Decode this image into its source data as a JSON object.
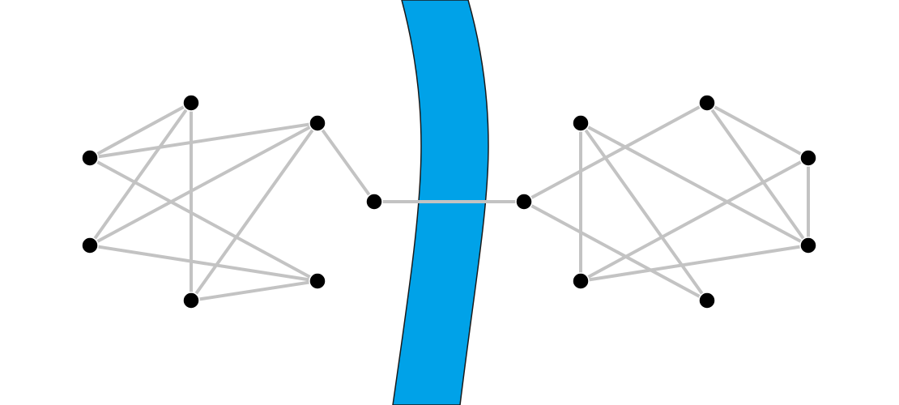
{
  "diagram": {
    "type": "graph",
    "description_visible_text": "",
    "colors": {
      "river_fill": "#00a2e8",
      "river_stroke": "#1a1a1a",
      "edge": "#c3c3c3",
      "node": "#000000",
      "node_outline": "#ffffff",
      "background": "#ffffff"
    },
    "nodes": [
      {
        "id": "L1",
        "group": "left"
      },
      {
        "id": "L2",
        "group": "left"
      },
      {
        "id": "L3",
        "group": "left"
      },
      {
        "id": "L4",
        "group": "left"
      },
      {
        "id": "L5",
        "group": "left"
      },
      {
        "id": "L6",
        "group": "left"
      },
      {
        "id": "L7",
        "group": "left"
      },
      {
        "id": "R1",
        "group": "right"
      },
      {
        "id": "R2",
        "group": "right"
      },
      {
        "id": "R3",
        "group": "right"
      },
      {
        "id": "R4",
        "group": "right"
      },
      {
        "id": "R5",
        "group": "right"
      },
      {
        "id": "R6",
        "group": "right"
      },
      {
        "id": "R7",
        "group": "right"
      }
    ],
    "edges": [
      [
        "L1",
        "L2"
      ],
      [
        "L1",
        "L3"
      ],
      [
        "L1",
        "L5"
      ],
      [
        "L2",
        "L4"
      ],
      [
        "L2",
        "L6"
      ],
      [
        "L3",
        "L4"
      ],
      [
        "L3",
        "L7"
      ],
      [
        "L3",
        "L6"
      ],
      [
        "L4",
        "L5"
      ],
      [
        "L5",
        "L6"
      ],
      [
        "L7",
        "R1"
      ],
      [
        "R1",
        "R3"
      ],
      [
        "R1",
        "R5"
      ],
      [
        "R2",
        "R6"
      ],
      [
        "R2",
        "R4"
      ],
      [
        "R2",
        "R5"
      ],
      [
        "R3",
        "R6"
      ],
      [
        "R3",
        "R7"
      ],
      [
        "R4",
        "R6"
      ],
      [
        "R4",
        "R7"
      ],
      [
        "R6",
        "R7"
      ]
    ]
  }
}
